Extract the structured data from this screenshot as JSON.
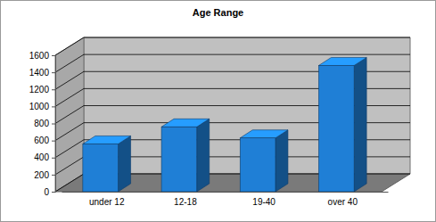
{
  "chart_data": {
    "type": "bar",
    "title": "Age Range",
    "categories": [
      "under 12",
      "12-18",
      "19-40",
      "over 40"
    ],
    "values": [
      560,
      760,
      630,
      1480
    ],
    "color": "#1f7fd6",
    "ylim": [
      0,
      1600
    ],
    "yticks": [
      0,
      200,
      400,
      600,
      800,
      1000,
      1200,
      1400,
      1600
    ],
    "grid": true
  }
}
